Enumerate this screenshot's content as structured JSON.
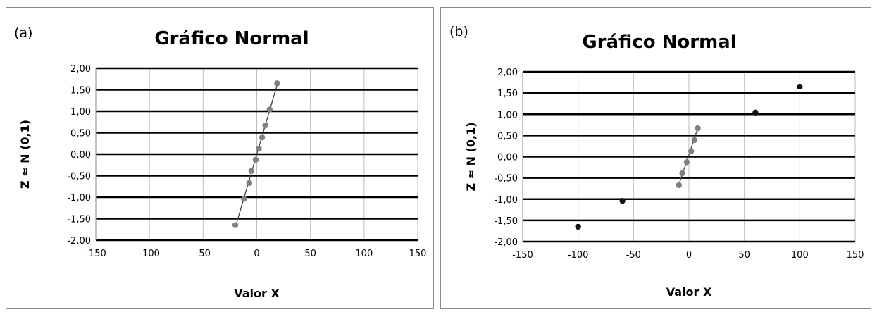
{
  "chart_data": [
    {
      "type": "scatter",
      "panel_label": "(a)",
      "title": "Gráfico Normal",
      "xlabel": "Valor X",
      "ylabel": "Z ≈ N (0,1)",
      "xlim": [
        -150,
        150
      ],
      "ylim": [
        -2,
        2
      ],
      "x_ticks": [
        "-150",
        "-100",
        "-50",
        "0",
        "50",
        "100",
        "150"
      ],
      "y_ticks": [
        "2,00",
        "1,50",
        "1,00",
        "0,50",
        "0,00",
        "-0,50",
        "-1,00",
        "-1,50",
        "-2,00"
      ],
      "grid": "both",
      "series": [
        {
          "color": "#808080",
          "x": [
            -20,
            -12,
            -7,
            -5,
            -1,
            2,
            5,
            8,
            12,
            19
          ],
          "y": [
            -1.65,
            -1.04,
            -0.67,
            -0.39,
            -0.13,
            0.13,
            0.39,
            0.67,
            1.04,
            1.65
          ]
        }
      ],
      "trend_line": {
        "x": [
          -19,
          19
        ],
        "y": [
          -1.62,
          1.62
        ],
        "color": "#404040"
      }
    },
    {
      "type": "scatter",
      "panel_label": "(b)",
      "title": "Gráfico Normal",
      "xlabel": "Valor X",
      "ylabel": "Z ≈ N (0,1)",
      "xlim": [
        -150,
        150
      ],
      "ylim": [
        -2,
        2
      ],
      "x_ticks": [
        "-150",
        "-100",
        "-50",
        "0",
        "50",
        "100",
        "150"
      ],
      "y_ticks": [
        "2,00",
        "1,50",
        "1,00",
        "0,50",
        "0,00",
        "-0,50",
        "-1,00",
        "-1,50",
        "-2,00"
      ],
      "grid": "both",
      "series": [
        {
          "color": "#808080",
          "x": [
            -9,
            -6,
            -2,
            2,
            5,
            8
          ],
          "y": [
            -0.67,
            -0.39,
            -0.13,
            0.13,
            0.39,
            0.67
          ]
        },
        {
          "color": "#111111",
          "x": [
            -100,
            -60,
            60,
            100
          ],
          "y": [
            -1.65,
            -1.04,
            1.04,
            1.65
          ]
        }
      ],
      "trend_line": {
        "x": [
          -9,
          8
        ],
        "y": [
          -0.65,
          0.67
        ],
        "color": "#404040"
      }
    }
  ]
}
